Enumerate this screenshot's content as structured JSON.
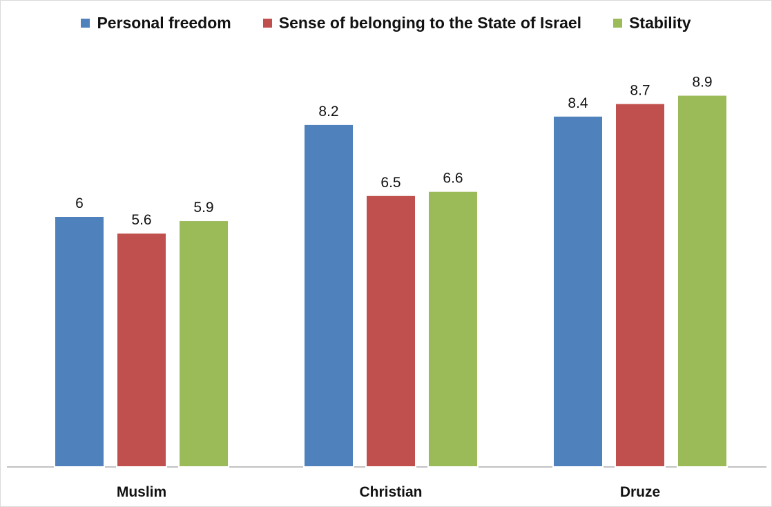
{
  "chart_data": {
    "type": "bar",
    "categories": [
      "Muslim",
      "Christian",
      "Druze"
    ],
    "series": [
      {
        "name": "Personal freedom",
        "values": [
          6,
          8.2,
          8.4
        ],
        "color": "#4f81bd",
        "value_labels": [
          "6",
          "8.2",
          "8.4"
        ]
      },
      {
        "name": "Sense of belonging to the State of Israel",
        "values": [
          5.6,
          6.5,
          8.7
        ],
        "color": "#c0504d",
        "value_labels": [
          "5.6",
          "6.5",
          "8.7"
        ]
      },
      {
        "name": "Stability",
        "values": [
          5.9,
          6.6,
          8.9
        ],
        "color": "#9bbb59",
        "value_labels": [
          "5.9",
          "6.6",
          "8.9"
        ]
      }
    ],
    "title": "",
    "xlabel": "",
    "ylabel": "",
    "ylim": [
      0,
      10
    ],
    "grid": false,
    "legend_position": "top"
  }
}
